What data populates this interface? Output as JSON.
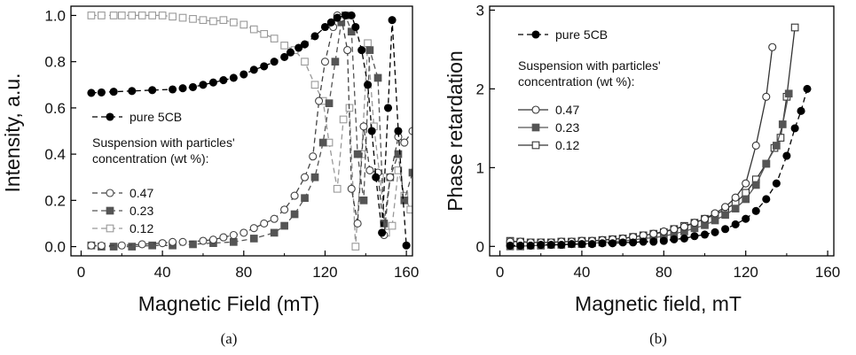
{
  "chart_data": [
    {
      "type": "line",
      "xlabel": "Magnetic Field (mT)",
      "ylabel": "Intensity, a.u.",
      "caption": "(a)",
      "xlim": [
        -5,
        163
      ],
      "ylim": [
        -0.04,
        1.04
      ],
      "x_ticks": [
        0,
        40,
        80,
        120,
        160
      ],
      "y_ticks": [
        0.0,
        0.2,
        0.4,
        0.6,
        0.8,
        1.0
      ],
      "x_tick_labels": [
        "0",
        "40",
        "80",
        "120",
        "160"
      ],
      "y_tick_labels": [
        "0.0",
        "0.2",
        "0.4",
        "0.6",
        "0.8",
        "1.0"
      ],
      "legend_heading": [
        "Suspension with particles'",
        "concentration (wt %):"
      ],
      "series": [
        {
          "name": "pure 5CB",
          "marker": "filled-circle",
          "color": "#000000",
          "dash": "6,4",
          "points": [
            [
              5,
              0.665
            ],
            [
              10,
              0.667
            ],
            [
              16,
              0.67
            ],
            [
              25,
              0.673
            ],
            [
              35,
              0.677
            ],
            [
              45,
              0.68
            ],
            [
              50,
              0.685
            ],
            [
              55,
              0.69
            ],
            [
              60,
              0.7
            ],
            [
              65,
              0.71
            ],
            [
              70,
              0.72
            ],
            [
              75,
              0.73
            ],
            [
              80,
              0.745
            ],
            [
              85,
              0.765
            ],
            [
              90,
              0.78
            ],
            [
              95,
              0.8
            ],
            [
              100,
              0.82
            ],
            [
              103,
              0.84
            ],
            [
              107,
              0.86
            ],
            [
              110,
              0.875
            ],
            [
              115,
              0.91
            ],
            [
              120,
              0.95
            ],
            [
              123,
              0.97
            ],
            [
              126,
              0.99
            ],
            [
              130,
              1.0
            ],
            [
              133,
              1.0
            ],
            [
              135,
              0.95
            ],
            [
              138,
              0.85
            ],
            [
              141,
              0.7
            ],
            [
              143,
              0.5
            ],
            [
              145,
              0.3
            ],
            [
              148,
              0.06
            ],
            [
              151,
              0.6
            ],
            [
              153,
              0.98
            ],
            [
              156,
              0.5
            ],
            [
              160,
              0.005
            ]
          ]
        },
        {
          "name": "0.47",
          "marker": "open-circle",
          "color": "#444444",
          "dash": "6,4",
          "points": [
            [
              5,
              0.005
            ],
            [
              10,
              0.004
            ],
            [
              20,
              0.005
            ],
            [
              30,
              0.01
            ],
            [
              40,
              0.015
            ],
            [
              45,
              0.02
            ],
            [
              50,
              0.02
            ],
            [
              60,
              0.025
            ],
            [
              65,
              0.03
            ],
            [
              70,
              0.04
            ],
            [
              75,
              0.05
            ],
            [
              80,
              0.06
            ],
            [
              85,
              0.08
            ],
            [
              90,
              0.1
            ],
            [
              95,
              0.12
            ],
            [
              100,
              0.16
            ],
            [
              105,
              0.22
            ],
            [
              110,
              0.3
            ],
            [
              114,
              0.39
            ],
            [
              117,
              0.63
            ],
            [
              120,
              0.8
            ],
            [
              124,
              0.95
            ],
            [
              126,
              1.0
            ],
            [
              128,
              0.99
            ],
            [
              131,
              0.85
            ],
            [
              133,
              0.25
            ],
            [
              136,
              0.1
            ],
            [
              139,
              0.52
            ],
            [
              142,
              0.33
            ],
            [
              146,
              0.32
            ],
            [
              149,
              0.05
            ],
            [
              152,
              0.3
            ],
            [
              156,
              0.475
            ],
            [
              159,
              0.45
            ],
            [
              163,
              0.5
            ]
          ]
        },
        {
          "name": "0.23",
          "marker": "filled-square",
          "color": "#555555",
          "dash": "6,4",
          "points": [
            [
              5,
              0.005
            ],
            [
              10,
              0.0
            ],
            [
              16,
              0.0
            ],
            [
              25,
              0.0
            ],
            [
              35,
              0.005
            ],
            [
              45,
              0.005
            ],
            [
              55,
              0.01
            ],
            [
              65,
              0.015
            ],
            [
              75,
              0.02
            ],
            [
              85,
              0.035
            ],
            [
              95,
              0.06
            ],
            [
              100,
              0.09
            ],
            [
              105,
              0.14
            ],
            [
              110,
              0.21
            ],
            [
              115,
              0.3
            ],
            [
              119,
              0.45
            ],
            [
              122,
              0.62
            ],
            [
              125,
              0.8
            ],
            [
              128,
              0.97
            ],
            [
              130,
              1.0
            ],
            [
              133,
              0.93
            ],
            [
              136,
              0.4
            ],
            [
              139,
              0.2
            ],
            [
              142,
              0.85
            ],
            [
              146,
              0.73
            ],
            [
              149,
              0.1
            ],
            [
              152,
              0.3
            ],
            [
              156,
              0.4
            ],
            [
              159,
              0.2
            ],
            [
              163,
              0.32
            ]
          ]
        },
        {
          "name": "0.12",
          "marker": "open-square",
          "color": "#999999",
          "dash": "6,4",
          "points": [
            [
              5,
              1.0
            ],
            [
              10,
              1.0
            ],
            [
              16,
              1.0
            ],
            [
              20,
              1.0
            ],
            [
              25,
              1.0
            ],
            [
              30,
              1.0
            ],
            [
              35,
              1.0
            ],
            [
              40,
              1.0
            ],
            [
              45,
              0.995
            ],
            [
              50,
              0.99
            ],
            [
              55,
              0.985
            ],
            [
              60,
              0.98
            ],
            [
              65,
              0.975
            ],
            [
              70,
              0.98
            ],
            [
              75,
              0.97
            ],
            [
              80,
              0.96
            ],
            [
              85,
              0.94
            ],
            [
              90,
              0.92
            ],
            [
              95,
              0.9
            ],
            [
              100,
              0.87
            ],
            [
              105,
              0.85
            ],
            [
              110,
              0.8
            ],
            [
              115,
              0.7
            ],
            [
              119,
              0.63
            ],
            [
              122,
              0.45
            ],
            [
              126,
              0.25
            ],
            [
              129,
              0.55
            ],
            [
              132,
              0.6
            ],
            [
              135,
              0.0
            ],
            [
              138,
              0.4
            ],
            [
              141,
              0.88
            ],
            [
              144,
              0.52
            ],
            [
              147,
              0.3
            ],
            [
              150,
              0.06
            ],
            [
              153,
              0.09
            ],
            [
              156,
              0.33
            ],
            [
              159,
              0.22
            ],
            [
              162,
              0.16
            ]
          ]
        }
      ]
    },
    {
      "type": "line",
      "xlabel": "Magnetic field, mT",
      "ylabel": "Phase retardation",
      "caption": "(b)",
      "xlim": [
        -5,
        163
      ],
      "ylim": [
        -0.12,
        3.05
      ],
      "x_ticks": [
        0,
        40,
        80,
        120,
        160
      ],
      "y_ticks": [
        0,
        1,
        2,
        3
      ],
      "x_tick_labels": [
        "0",
        "40",
        "80",
        "120",
        "160"
      ],
      "y_tick_labels": [
        "0",
        "1",
        "2",
        "3"
      ],
      "legend_heading": [
        "Suspension with particles'",
        "concentration (wt %):"
      ],
      "series": [
        {
          "name": "pure 5CB",
          "marker": "filled-circle",
          "color": "#000000",
          "dash": "6,4",
          "points": [
            [
              5,
              0.01
            ],
            [
              10,
              0.01
            ],
            [
              15,
              0.01
            ],
            [
              20,
              0.02
            ],
            [
              25,
              0.02
            ],
            [
              30,
              0.02
            ],
            [
              35,
              0.03
            ],
            [
              40,
              0.03
            ],
            [
              45,
              0.03
            ],
            [
              50,
              0.04
            ],
            [
              55,
              0.04
            ],
            [
              60,
              0.05
            ],
            [
              65,
              0.05
            ],
            [
              70,
              0.06
            ],
            [
              75,
              0.06
            ],
            [
              80,
              0.07
            ],
            [
              85,
              0.09
            ],
            [
              90,
              0.1
            ],
            [
              95,
              0.13
            ],
            [
              100,
              0.15
            ],
            [
              105,
              0.18
            ],
            [
              110,
              0.22
            ],
            [
              115,
              0.28
            ],
            [
              120,
              0.35
            ],
            [
              125,
              0.45
            ],
            [
              130,
              0.6
            ],
            [
              135,
              0.8
            ],
            [
              140,
              1.15
            ],
            [
              144,
              1.5
            ],
            [
              147,
              1.72
            ],
            [
              150,
              2.0
            ]
          ]
        },
        {
          "name": "0.47",
          "marker": "open-circle",
          "color": "#333333",
          "dash": "",
          "points": [
            [
              5,
              0.06
            ],
            [
              10,
              0.06
            ],
            [
              15,
              0.05
            ],
            [
              20,
              0.05
            ],
            [
              25,
              0.05
            ],
            [
              30,
              0.06
            ],
            [
              35,
              0.06
            ],
            [
              40,
              0.07
            ],
            [
              45,
              0.07
            ],
            [
              50,
              0.08
            ],
            [
              55,
              0.09
            ],
            [
              60,
              0.1
            ],
            [
              65,
              0.12
            ],
            [
              70,
              0.14
            ],
            [
              75,
              0.16
            ],
            [
              80,
              0.19
            ],
            [
              85,
              0.22
            ],
            [
              90,
              0.25
            ],
            [
              95,
              0.3
            ],
            [
              100,
              0.35
            ],
            [
              105,
              0.42
            ],
            [
              110,
              0.5
            ],
            [
              115,
              0.62
            ],
            [
              120,
              0.8
            ],
            [
              125,
              1.28
            ],
            [
              130,
              1.9
            ],
            [
              133,
              2.53
            ]
          ]
        },
        {
          "name": "0.23",
          "marker": "filled-square",
          "color": "#555555",
          "dash": "",
          "points": [
            [
              5,
              0.0
            ],
            [
              10,
              0.0
            ],
            [
              15,
              0.01
            ],
            [
              20,
              0.01
            ],
            [
              25,
              0.02
            ],
            [
              30,
              0.02
            ],
            [
              35,
              0.03
            ],
            [
              40,
              0.03
            ],
            [
              45,
              0.04
            ],
            [
              50,
              0.05
            ],
            [
              55,
              0.06
            ],
            [
              60,
              0.07
            ],
            [
              65,
              0.08
            ],
            [
              70,
              0.1
            ],
            [
              75,
              0.11
            ],
            [
              80,
              0.13
            ],
            [
              85,
              0.16
            ],
            [
              90,
              0.19
            ],
            [
              95,
              0.23
            ],
            [
              100,
              0.27
            ],
            [
              105,
              0.33
            ],
            [
              110,
              0.4
            ],
            [
              115,
              0.48
            ],
            [
              120,
              0.6
            ],
            [
              125,
              0.78
            ],
            [
              130,
              1.05
            ],
            [
              135,
              1.28
            ],
            [
              138,
              1.55
            ],
            [
              141,
              1.94
            ]
          ]
        },
        {
          "name": "0.12",
          "marker": "open-square",
          "color": "#333333",
          "dash": "",
          "points": [
            [
              5,
              0.07
            ],
            [
              10,
              0.06
            ],
            [
              15,
              0.05
            ],
            [
              20,
              0.05
            ],
            [
              25,
              0.05
            ],
            [
              30,
              0.06
            ],
            [
              35,
              0.06
            ],
            [
              40,
              0.07
            ],
            [
              45,
              0.07
            ],
            [
              50,
              0.08
            ],
            [
              55,
              0.09
            ],
            [
              60,
              0.1
            ],
            [
              65,
              0.12
            ],
            [
              70,
              0.14
            ],
            [
              75,
              0.16
            ],
            [
              80,
              0.18
            ],
            [
              85,
              0.22
            ],
            [
              90,
              0.26
            ],
            [
              95,
              0.3
            ],
            [
              100,
              0.35
            ],
            [
              105,
              0.4
            ],
            [
              110,
              0.47
            ],
            [
              115,
              0.55
            ],
            [
              120,
              0.68
            ],
            [
              125,
              0.85
            ],
            [
              130,
              1.05
            ],
            [
              134,
              1.25
            ],
            [
              137,
              1.38
            ],
            [
              140,
              1.9
            ],
            [
              144,
              2.78
            ]
          ]
        }
      ]
    }
  ]
}
